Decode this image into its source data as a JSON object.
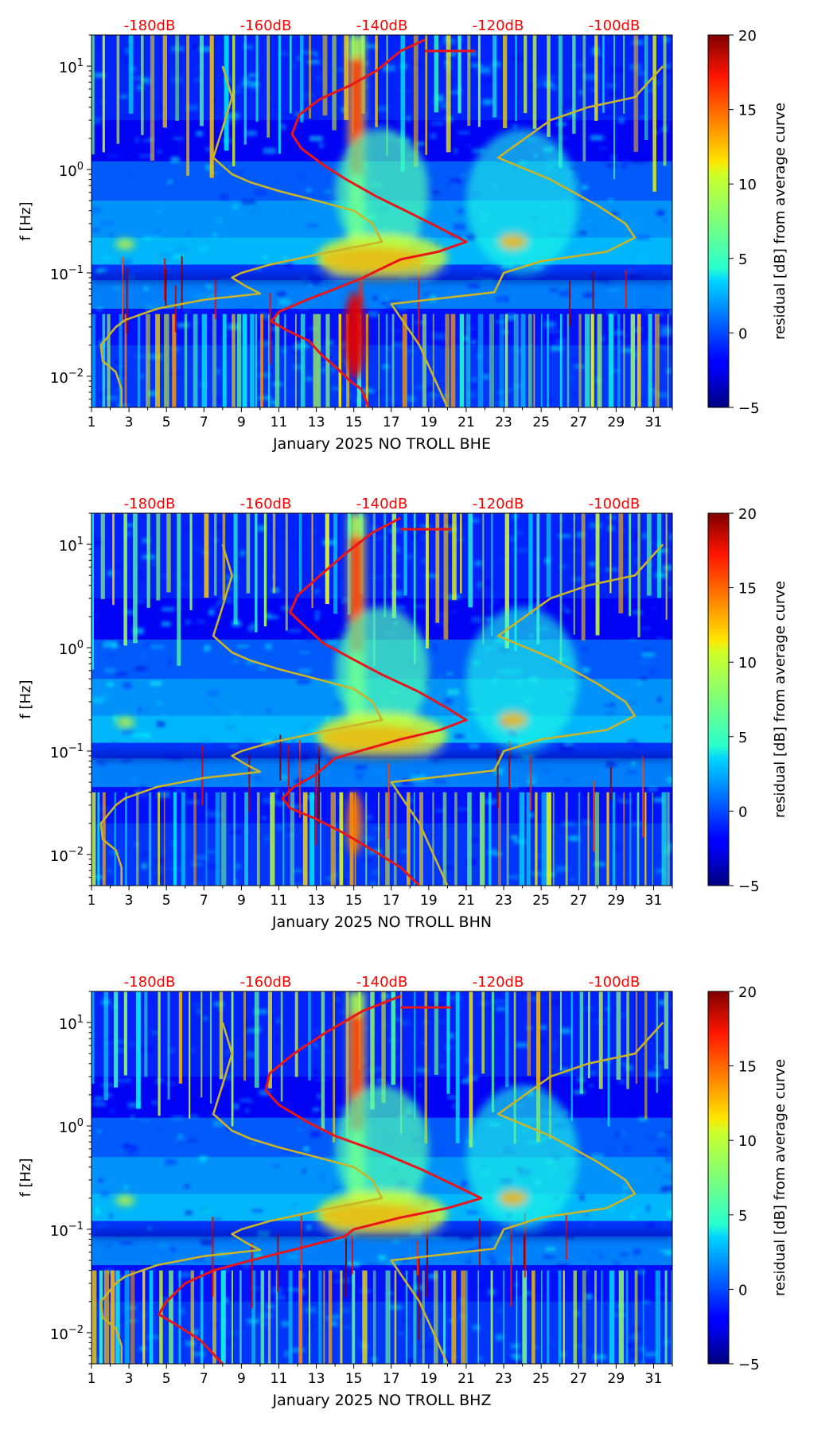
{
  "colors": {
    "red_curve": "#e8161b",
    "olive_curve": "#c9b42a",
    "top_label": "#ff0000"
  },
  "chart_data": [
    {
      "type": "heatmap",
      "xlabel": "January 2025 NO TROLL  BHE",
      "ylabel": "f [Hz]",
      "x_ticks": [
        "1",
        "3",
        "5",
        "7",
        "9",
        "11",
        "13",
        "15",
        "17",
        "19",
        "21",
        "23",
        "25",
        "27",
        "29",
        "31"
      ],
      "x_range": [
        1,
        32
      ],
      "y_scale": "log",
      "y_range": [
        0.005,
        20
      ],
      "y_ticks": [
        {
          "base": "10",
          "exp": "−2",
          "value": 0.01
        },
        {
          "base": "10",
          "exp": "−1",
          "value": 0.1
        },
        {
          "base": "10",
          "exp": "0",
          "value": 1
        },
        {
          "base": "10",
          "exp": "1",
          "value": 10
        }
      ],
      "top_labels": [
        "-180dB",
        "-160dB",
        "-140dB",
        "-120dB",
        "-100dB"
      ],
      "colorbar": {
        "label": "residual [dB] from average curve",
        "range": [
          -5,
          20
        ],
        "ticks": [
          "−5",
          "0",
          "5",
          "10",
          "15",
          "20"
        ]
      },
      "series": [
        {
          "values": [
            [
              18.8,
              18
            ],
            [
              17.5,
              14
            ],
            [
              16.2,
              9
            ],
            [
              14.8,
              6.5
            ],
            [
              13.2,
              4.8
            ],
            [
              12.1,
              3.4
            ],
            [
              11.7,
              2.2
            ],
            [
              12.2,
              1.6
            ],
            [
              13.4,
              1.1
            ],
            [
              14.6,
              0.8
            ],
            [
              16.2,
              0.55
            ],
            [
              18.0,
              0.38
            ],
            [
              19.8,
              0.26
            ],
            [
              21.0,
              0.2
            ],
            [
              19.5,
              0.16
            ],
            [
              17.5,
              0.135
            ],
            [
              16.0,
              0.1
            ],
            [
              15.5,
              0.09
            ],
            [
              14.0,
              0.07
            ],
            [
              12.5,
              0.055
            ],
            [
              11.0,
              0.042
            ],
            [
              10.6,
              0.034
            ],
            [
              11.4,
              0.028
            ],
            [
              12.6,
              0.022
            ],
            [
              13.3,
              0.016
            ],
            [
              14.1,
              0.012
            ],
            [
              14.8,
              0.009
            ],
            [
              15.4,
              0.0075
            ],
            [
              15.8,
              0.005
            ]
          ]
        },
        {
          "values": [
            [
              8.0,
              10
            ],
            [
              8.5,
              5
            ],
            [
              8.0,
              2.5
            ],
            [
              7.5,
              1.3
            ],
            [
              8.5,
              0.9
            ],
            [
              9.5,
              0.75
            ],
            [
              11.0,
              0.62
            ],
            [
              13.0,
              0.5
            ],
            [
              15.0,
              0.4
            ],
            [
              16.0,
              0.3
            ],
            [
              16.5,
              0.2
            ],
            [
              13.0,
              0.15
            ],
            [
              10.5,
              0.12
            ],
            [
              9.0,
              0.1
            ],
            [
              8.5,
              0.09
            ],
            [
              9.2,
              0.075
            ],
            [
              10.0,
              0.063
            ],
            [
              7.0,
              0.055
            ],
            [
              4.5,
              0.045
            ],
            [
              2.8,
              0.035
            ],
            [
              2.3,
              0.03
            ],
            [
              1.5,
              0.02
            ],
            [
              1.6,
              0.014
            ],
            [
              2.3,
              0.011
            ],
            [
              2.6,
              0.0075
            ],
            [
              2.6,
              0.005
            ]
          ]
        },
        {
          "values": [
            [
              31.5,
              10
            ],
            [
              30.0,
              5
            ],
            [
              27.5,
              4
            ],
            [
              25.5,
              3
            ],
            [
              22.7,
              1.3
            ],
            [
              25.5,
              0.8
            ],
            [
              28.0,
              0.45
            ],
            [
              29.5,
              0.3
            ],
            [
              30.0,
              0.22
            ],
            [
              28.5,
              0.16
            ],
            [
              25.0,
              0.13
            ],
            [
              23.0,
              0.1
            ],
            [
              22.5,
              0.065
            ],
            [
              17.0,
              0.05
            ],
            [
              18.5,
              0.02
            ],
            [
              20.0,
              0.005
            ]
          ]
        }
      ]
    },
    {
      "type": "heatmap",
      "xlabel": "January 2025 NO TROLL  BHN",
      "ylabel": "f [Hz]",
      "x_ticks": [
        "1",
        "3",
        "5",
        "7",
        "9",
        "11",
        "13",
        "15",
        "17",
        "19",
        "21",
        "23",
        "25",
        "27",
        "29",
        "31"
      ],
      "x_range": [
        1,
        32
      ],
      "y_scale": "log",
      "y_range": [
        0.005,
        20
      ],
      "y_ticks": [
        {
          "base": "10",
          "exp": "−2",
          "value": 0.01
        },
        {
          "base": "10",
          "exp": "−1",
          "value": 0.1
        },
        {
          "base": "10",
          "exp": "0",
          "value": 1
        },
        {
          "base": "10",
          "exp": "1",
          "value": 10
        }
      ],
      "top_labels": [
        "-180dB",
        "-160dB",
        "-140dB",
        "-120dB",
        "-100dB"
      ],
      "colorbar": {
        "label": "residual [dB] from average curve",
        "range": [
          -5,
          20
        ],
        "ticks": [
          "−5",
          "0",
          "5",
          "10",
          "15",
          "20"
        ]
      },
      "series": [
        {
          "values": [
            [
              17.5,
              18
            ],
            [
              16.0,
              13
            ],
            [
              14.5,
              8
            ],
            [
              13.2,
              5
            ],
            [
              12.0,
              3.2
            ],
            [
              11.6,
              2.2
            ],
            [
              12.4,
              1.6
            ],
            [
              13.4,
              1.1
            ],
            [
              14.8,
              0.8
            ],
            [
              16.5,
              0.55
            ],
            [
              18.4,
              0.38
            ],
            [
              20.0,
              0.26
            ],
            [
              21.0,
              0.2
            ],
            [
              19.6,
              0.16
            ],
            [
              17.5,
              0.13
            ],
            [
              15.3,
              0.1
            ],
            [
              14.0,
              0.085
            ],
            [
              13.0,
              0.06
            ],
            [
              11.8,
              0.045
            ],
            [
              11.2,
              0.035
            ],
            [
              11.6,
              0.028
            ],
            [
              13.0,
              0.022
            ],
            [
              14.5,
              0.016
            ],
            [
              16.0,
              0.011
            ],
            [
              17.5,
              0.0075
            ],
            [
              18.5,
              0.005
            ]
          ]
        },
        {
          "values": [
            [
              8.0,
              10
            ],
            [
              8.5,
              5
            ],
            [
              8.0,
              2.5
            ],
            [
              7.5,
              1.3
            ],
            [
              8.5,
              0.9
            ],
            [
              9.5,
              0.75
            ],
            [
              11.0,
              0.62
            ],
            [
              13.0,
              0.5
            ],
            [
              15.0,
              0.4
            ],
            [
              16.0,
              0.3
            ],
            [
              16.5,
              0.2
            ],
            [
              13.0,
              0.15
            ],
            [
              10.5,
              0.12
            ],
            [
              9.0,
              0.1
            ],
            [
              8.5,
              0.09
            ],
            [
              9.2,
              0.075
            ],
            [
              10.0,
              0.063
            ],
            [
              7.0,
              0.055
            ],
            [
              4.5,
              0.045
            ],
            [
              2.8,
              0.035
            ],
            [
              2.3,
              0.03
            ],
            [
              1.5,
              0.02
            ],
            [
              1.6,
              0.014
            ],
            [
              2.3,
              0.011
            ],
            [
              2.6,
              0.0075
            ],
            [
              2.6,
              0.005
            ]
          ]
        },
        {
          "values": [
            [
              31.5,
              10
            ],
            [
              30.0,
              5
            ],
            [
              27.5,
              4
            ],
            [
              25.5,
              3
            ],
            [
              22.7,
              1.3
            ],
            [
              25.5,
              0.8
            ],
            [
              28.0,
              0.45
            ],
            [
              29.5,
              0.3
            ],
            [
              30.0,
              0.22
            ],
            [
              28.5,
              0.16
            ],
            [
              25.0,
              0.13
            ],
            [
              23.0,
              0.1
            ],
            [
              22.5,
              0.065
            ],
            [
              17.0,
              0.05
            ],
            [
              18.5,
              0.02
            ],
            [
              20.0,
              0.005
            ]
          ]
        }
      ]
    },
    {
      "type": "heatmap",
      "xlabel": "January 2025 NO TROLL  BHZ",
      "ylabel": "f [Hz]",
      "x_ticks": [
        "1",
        "3",
        "5",
        "7",
        "9",
        "11",
        "13",
        "15",
        "17",
        "19",
        "21",
        "23",
        "25",
        "27",
        "29",
        "31"
      ],
      "x_range": [
        1,
        32
      ],
      "y_scale": "log",
      "y_range": [
        0.005,
        20
      ],
      "y_ticks": [
        {
          "base": "10",
          "exp": "−2",
          "value": 0.01
        },
        {
          "base": "10",
          "exp": "−1",
          "value": 0.1
        },
        {
          "base": "10",
          "exp": "0",
          "value": 1
        },
        {
          "base": "10",
          "exp": "1",
          "value": 10
        }
      ],
      "top_labels": [
        "-180dB",
        "-160dB",
        "-140dB",
        "-120dB",
        "-100dB"
      ],
      "colorbar": {
        "label": "residual [dB] from average curve",
        "range": [
          -5,
          20
        ],
        "ticks": [
          "−5",
          "0",
          "5",
          "10",
          "15",
          "20"
        ]
      },
      "series": [
        {
          "values": [
            [
              17.5,
              18
            ],
            [
              15.5,
              13
            ],
            [
              13.5,
              8
            ],
            [
              11.8,
              5
            ],
            [
              10.5,
              3.2
            ],
            [
              10.3,
              2.2
            ],
            [
              11.0,
              1.6
            ],
            [
              12.5,
              1.1
            ],
            [
              14.0,
              0.8
            ],
            [
              16.5,
              0.55
            ],
            [
              18.6,
              0.38
            ],
            [
              20.5,
              0.26
            ],
            [
              21.8,
              0.2
            ],
            [
              20.0,
              0.16
            ],
            [
              17.5,
              0.13
            ],
            [
              15.0,
              0.1
            ],
            [
              14.5,
              0.085
            ],
            [
              12.0,
              0.065
            ],
            [
              9.5,
              0.05
            ],
            [
              7.5,
              0.04
            ],
            [
              6.0,
              0.03
            ],
            [
              5.0,
              0.02
            ],
            [
              4.6,
              0.015
            ],
            [
              5.5,
              0.012
            ],
            [
              6.8,
              0.0085
            ],
            [
              8.0,
              0.005
            ]
          ]
        },
        {
          "values": [
            [
              8.0,
              10
            ],
            [
              8.5,
              5
            ],
            [
              8.0,
              2.5
            ],
            [
              7.5,
              1.3
            ],
            [
              8.5,
              0.9
            ],
            [
              9.5,
              0.75
            ],
            [
              11.0,
              0.62
            ],
            [
              13.0,
              0.5
            ],
            [
              15.0,
              0.4
            ],
            [
              16.0,
              0.3
            ],
            [
              16.5,
              0.2
            ],
            [
              13.0,
              0.15
            ],
            [
              10.5,
              0.12
            ],
            [
              9.0,
              0.1
            ],
            [
              8.5,
              0.09
            ],
            [
              9.2,
              0.075
            ],
            [
              10.0,
              0.063
            ],
            [
              7.0,
              0.055
            ],
            [
              4.5,
              0.045
            ],
            [
              2.8,
              0.035
            ],
            [
              2.3,
              0.03
            ],
            [
              1.5,
              0.02
            ],
            [
              1.6,
              0.014
            ],
            [
              2.3,
              0.011
            ],
            [
              2.6,
              0.0075
            ],
            [
              2.6,
              0.005
            ]
          ]
        },
        {
          "values": [
            [
              31.5,
              10
            ],
            [
              30.0,
              5
            ],
            [
              27.5,
              4
            ],
            [
              25.5,
              3
            ],
            [
              22.7,
              1.3
            ],
            [
              25.5,
              0.8
            ],
            [
              28.0,
              0.45
            ],
            [
              29.5,
              0.3
            ],
            [
              30.0,
              0.22
            ],
            [
              28.5,
              0.16
            ],
            [
              25.0,
              0.13
            ],
            [
              23.0,
              0.1
            ],
            [
              22.5,
              0.065
            ],
            [
              17.0,
              0.05
            ],
            [
              18.5,
              0.02
            ],
            [
              20.0,
              0.005
            ]
          ]
        }
      ]
    }
  ]
}
